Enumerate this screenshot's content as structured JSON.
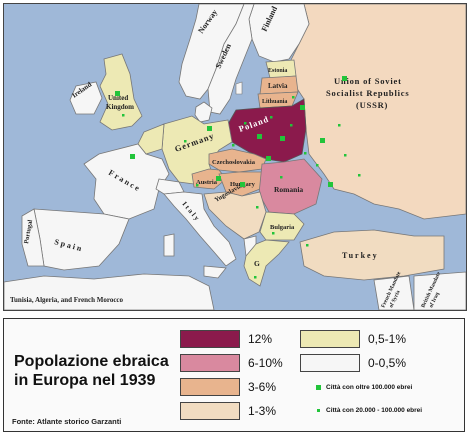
{
  "legend": {
    "title_line1": "Popolazione ebraica",
    "title_line2": "in Europa nel 1939",
    "source": "Fonte: Atlante storico Garzanti",
    "categories": [
      {
        "label": "12%",
        "color": "#8b1a4c"
      },
      {
        "label": "6-10%",
        "color": "#d9899f"
      },
      {
        "label": "3-6%",
        "color": "#e8b48e"
      },
      {
        "label": "1-3%",
        "color": "#f1dcc1"
      },
      {
        "label": "0,5-1%",
        "color": "#ede9b4"
      },
      {
        "label": "0-0,5%",
        "color": "#f6f6f6"
      }
    ],
    "big_city_label": "Città con oltre 100.000 ebrei",
    "small_city_label": "Città con 20.000 - 100.000 ebrei",
    "city_color": "#22c43a"
  },
  "map": {
    "sea_color": "#9fb8d8",
    "countries": {
      "ireland": "Ireland",
      "uk_line1": "United",
      "uk_line2": "Kingdom",
      "norway": "Norway",
      "sweden": "Sweden",
      "finland": "Finland",
      "estonia": "Estonia",
      "latvia": "Latvia",
      "lithuania": "Lithuania",
      "ussr_line1": "Union of Soviet",
      "ussr_line2": "Socialist Republics",
      "ussr_line3": "(USSR)",
      "germany": "Germany",
      "poland": "Poland",
      "czechoslovakia": "Czechoslovakia",
      "austria": "Austria",
      "hungary": "Hungary",
      "romania": "Romania",
      "france": "France",
      "spain": "Spain",
      "portugal": "Portugal",
      "italy": "Italy",
      "yugoslavia": "Yugoslavia",
      "bulgaria": "Bulgaria",
      "greece": "G",
      "turkey": "Turkey",
      "north_africa": "Tunisia, Algeria, and French Morocco",
      "french_mandate_line1": "French Mandate",
      "french_mandate_line2": "of Syria",
      "british_mandate_line1": "British Mandate",
      "british_mandate_line2": "of Iraq"
    }
  }
}
